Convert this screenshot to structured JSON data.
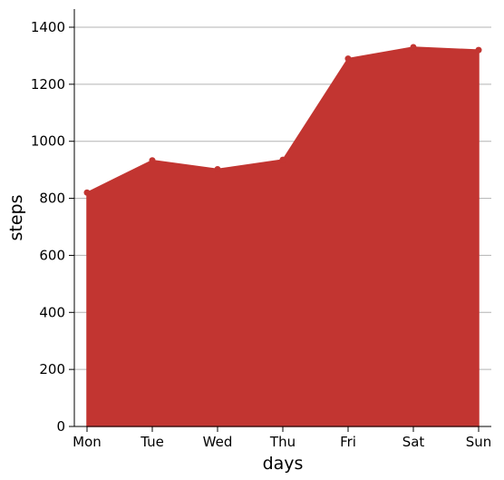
{
  "chart_data": {
    "type": "area",
    "categories": [
      "Mon",
      "Tue",
      "Wed",
      "Thu",
      "Fri",
      "Sat",
      "Sun"
    ],
    "series": [
      {
        "values": [
          820,
          933,
          902,
          935,
          1290,
          1330,
          1320
        ]
      }
    ],
    "xlabel": "days",
    "ylabel": "steps",
    "ylim": [
      0,
      1470
    ],
    "yticks": [
      0,
      200,
      400,
      600,
      800,
      1000,
      1200,
      1400
    ],
    "grid": "horizontal",
    "colors": {
      "area": "#c23531",
      "gridline": "#b3b3b3",
      "axis": "#000000"
    }
  }
}
